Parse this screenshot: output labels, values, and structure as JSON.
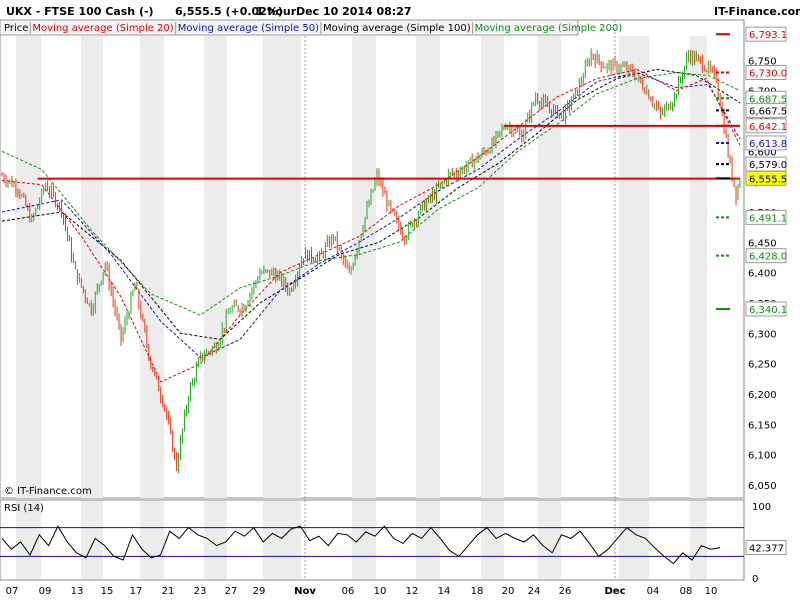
{
  "header": {
    "symbol": "UKX - FTSE 100 Cash (-)",
    "quote": "6,555.5 (+0.02%)",
    "interval": "1 hour",
    "datetime": "Dec 10 2014 08:27",
    "brand": "IT-Finance.com"
  },
  "legend": [
    {
      "label": "Price",
      "color": "#000000"
    },
    {
      "label": "Moving average (Simple 20)",
      "color": "#e00000"
    },
    {
      "label": "Moving average (Simple 50)",
      "color": "#1010c0"
    },
    {
      "label": "Moving average (Simple 100)",
      "color": "#000000"
    },
    {
      "label": "Moving average (Simple 200)",
      "color": "#109010"
    }
  ],
  "copyright": "© IT-Finance.com",
  "rsi_label": "RSI (14)",
  "colors": {
    "up": "#22aa22",
    "down": "#ee3311",
    "ma20": "#e00000",
    "ma50": "#1010c0",
    "ma100": "#000000",
    "ma200": "#109010",
    "level": "#dd0000",
    "highlight": "#ffff00"
  },
  "chart_data": [
    {
      "type": "candlestick",
      "ylim": [
        6050,
        6800
      ],
      "y_ticks": [
        "6,750",
        "6,700",
        "6,650",
        "6,600",
        "6,550",
        "6,500",
        "6,450",
        "6,400",
        "6,350",
        "6,300",
        "6,250",
        "6,200",
        "6,150",
        "6,100",
        "6,050"
      ],
      "y_tick_values": [
        6750,
        6700,
        6650,
        6600,
        6550,
        6500,
        6450,
        6400,
        6350,
        6300,
        6250,
        6200,
        6150,
        6100,
        6050
      ],
      "x_labels": [
        "07",
        "09",
        "13",
        "15",
        "17",
        "21",
        "23",
        "27",
        "29",
        "Nov",
        "06",
        "10",
        "12",
        "14",
        "18",
        "20",
        "24",
        "26",
        "Dec",
        "04",
        "08",
        "10"
      ],
      "x_bold": [
        "Nov",
        "Dec"
      ],
      "price_path": [
        [
          0,
          6560
        ],
        [
          8,
          6540
        ],
        [
          15,
          6485
        ],
        [
          22,
          6545
        ],
        [
          30,
          6505
        ],
        [
          37,
          6400
        ],
        [
          45,
          6340
        ],
        [
          52,
          6415
        ],
        [
          60,
          6290
        ],
        [
          67,
          6380
        ],
        [
          75,
          6250
        ],
        [
          82,
          6180
        ],
        [
          88,
          6080
        ],
        [
          94,
          6200
        ],
        [
          100,
          6260
        ],
        [
          108,
          6280
        ],
        [
          115,
          6340
        ],
        [
          122,
          6345
        ],
        [
          130,
          6400
        ],
        [
          137,
          6400
        ],
        [
          145,
          6370
        ],
        [
          152,
          6430
        ],
        [
          160,
          6425
        ],
        [
          167,
          6460
        ],
        [
          175,
          6395
        ],
        [
          182,
          6480
        ],
        [
          189,
          6560
        ],
        [
          196,
          6500
        ],
        [
          203,
          6460
        ],
        [
          210,
          6500
        ],
        [
          218,
          6530
        ],
        [
          225,
          6560
        ],
        [
          232,
          6570
        ],
        [
          240,
          6590
        ],
        [
          247,
          6610
        ],
        [
          254,
          6645
        ],
        [
          262,
          6625
        ],
        [
          269,
          6690
        ],
        [
          276,
          6670
        ],
        [
          283,
          6660
        ],
        [
          290,
          6700
        ],
        [
          297,
          6760
        ],
        [
          304,
          6740
        ],
        [
          311,
          6740
        ],
        [
          318,
          6730
        ],
        [
          325,
          6700
        ],
        [
          332,
          6660
        ],
        [
          339,
          6690
        ],
        [
          346,
          6760
        ],
        [
          353,
          6745
        ],
        [
          360,
          6720
        ],
        [
          364,
          6640
        ],
        [
          367,
          6575
        ],
        [
          370,
          6530
        ],
        [
          372,
          6555
        ]
      ],
      "moving_averages": {
        "ma20": [
          [
            0,
            6552
          ],
          [
            20,
            6545
          ],
          [
            40,
            6460
          ],
          [
            60,
            6360
          ],
          [
            80,
            6220
          ],
          [
            100,
            6250
          ],
          [
            120,
            6330
          ],
          [
            140,
            6400
          ],
          [
            160,
            6430
          ],
          [
            180,
            6460
          ],
          [
            200,
            6510
          ],
          [
            220,
            6545
          ],
          [
            240,
            6590
          ],
          [
            260,
            6640
          ],
          [
            280,
            6690
          ],
          [
            300,
            6720
          ],
          [
            320,
            6735
          ],
          [
            340,
            6700
          ],
          [
            355,
            6720
          ],
          [
            372,
            6610
          ]
        ],
        "ma50": [
          [
            0,
            6500
          ],
          [
            30,
            6520
          ],
          [
            55,
            6430
          ],
          [
            80,
            6320
          ],
          [
            100,
            6260
          ],
          [
            120,
            6290
          ],
          [
            140,
            6370
          ],
          [
            160,
            6415
          ],
          [
            180,
            6450
          ],
          [
            200,
            6490
          ],
          [
            220,
            6535
          ],
          [
            240,
            6570
          ],
          [
            260,
            6620
          ],
          [
            280,
            6665
          ],
          [
            300,
            6715
          ],
          [
            320,
            6730
          ],
          [
            340,
            6705
          ],
          [
            356,
            6710
          ],
          [
            372,
            6620
          ]
        ],
        "ma100": [
          [
            0,
            6485
          ],
          [
            30,
            6500
          ],
          [
            60,
            6420
          ],
          [
            90,
            6300
          ],
          [
            110,
            6290
          ],
          [
            130,
            6350
          ],
          [
            150,
            6390
          ],
          [
            170,
            6430
          ],
          [
            190,
            6450
          ],
          [
            210,
            6490
          ],
          [
            230,
            6540
          ],
          [
            250,
            6580
          ],
          [
            270,
            6630
          ],
          [
            290,
            6685
          ],
          [
            310,
            6720
          ],
          [
            330,
            6735
          ],
          [
            350,
            6725
          ],
          [
            372,
            6680
          ]
        ],
        "ma200": [
          [
            0,
            6600
          ],
          [
            20,
            6570
          ],
          [
            45,
            6470
          ],
          [
            75,
            6365
          ],
          [
            100,
            6330
          ],
          [
            120,
            6375
          ],
          [
            140,
            6395
          ],
          [
            160,
            6420
          ],
          [
            180,
            6430
          ],
          [
            200,
            6450
          ],
          [
            220,
            6505
          ],
          [
            240,
            6540
          ],
          [
            260,
            6600
          ],
          [
            280,
            6645
          ],
          [
            300,
            6695
          ],
          [
            320,
            6720
          ],
          [
            340,
            6730
          ],
          [
            356,
            6725
          ],
          [
            372,
            6700
          ]
        ]
      },
      "horizontal_levels": [
        {
          "value": 6555,
          "from": 18,
          "to": 372
        },
        {
          "value": 6642,
          "from": 253,
          "to": 372
        }
      ],
      "price_tags": [
        {
          "label": "6,793.1",
          "value": 6793.1,
          "color": "#dd0000"
        },
        {
          "label": "6,730.0",
          "value": 6730.0,
          "color": "#dd0000"
        },
        {
          "label": "6,687.5",
          "value": 6687.5,
          "color": "#109010"
        },
        {
          "label": "6,667.5",
          "value": 6667.5,
          "color": "#000000"
        },
        {
          "label": "6,642.1",
          "value": 6642.1,
          "color": "#dd0000"
        },
        {
          "label": "6,613.8",
          "value": 6613.8,
          "color": "#1010c0"
        },
        {
          "label": "6,579.0",
          "value": 6579.0,
          "color": "#000000"
        },
        {
          "label": "6,555.5",
          "value": 6555.5,
          "color": "#000000",
          "highlight": true
        },
        {
          "label": "6,491.1",
          "value": 6491.1,
          "color": "#109010"
        },
        {
          "label": "6,428.0",
          "value": 6428.0,
          "color": "#109010"
        },
        {
          "label": "6,340.1",
          "value": 6340.1,
          "color": "#109010"
        }
      ]
    },
    {
      "type": "line",
      "name": "RSI (14)",
      "ylim": [
        0,
        100
      ],
      "y_ticks": [
        "100",
        "0"
      ],
      "reference_lines": [
        70,
        30
      ],
      "last_value_label": "42.377",
      "values": [
        55,
        40,
        50,
        32,
        60,
        45,
        72,
        50,
        35,
        28,
        55,
        45,
        30,
        25,
        60,
        40,
        28,
        32,
        65,
        55,
        70,
        60,
        55,
        45,
        50,
        65,
        58,
        70,
        50,
        62,
        55,
        68,
        72,
        52,
        58,
        45,
        62,
        60,
        50,
        64,
        58,
        72,
        55,
        48,
        62,
        55,
        70,
        55,
        38,
        30,
        45,
        60,
        70,
        55,
        62,
        55,
        50,
        60,
        45,
        35,
        60,
        55,
        65,
        48,
        30,
        40,
        55,
        70,
        60,
        55,
        42,
        30,
        20,
        35,
        25,
        45,
        40,
        42
      ]
    }
  ]
}
